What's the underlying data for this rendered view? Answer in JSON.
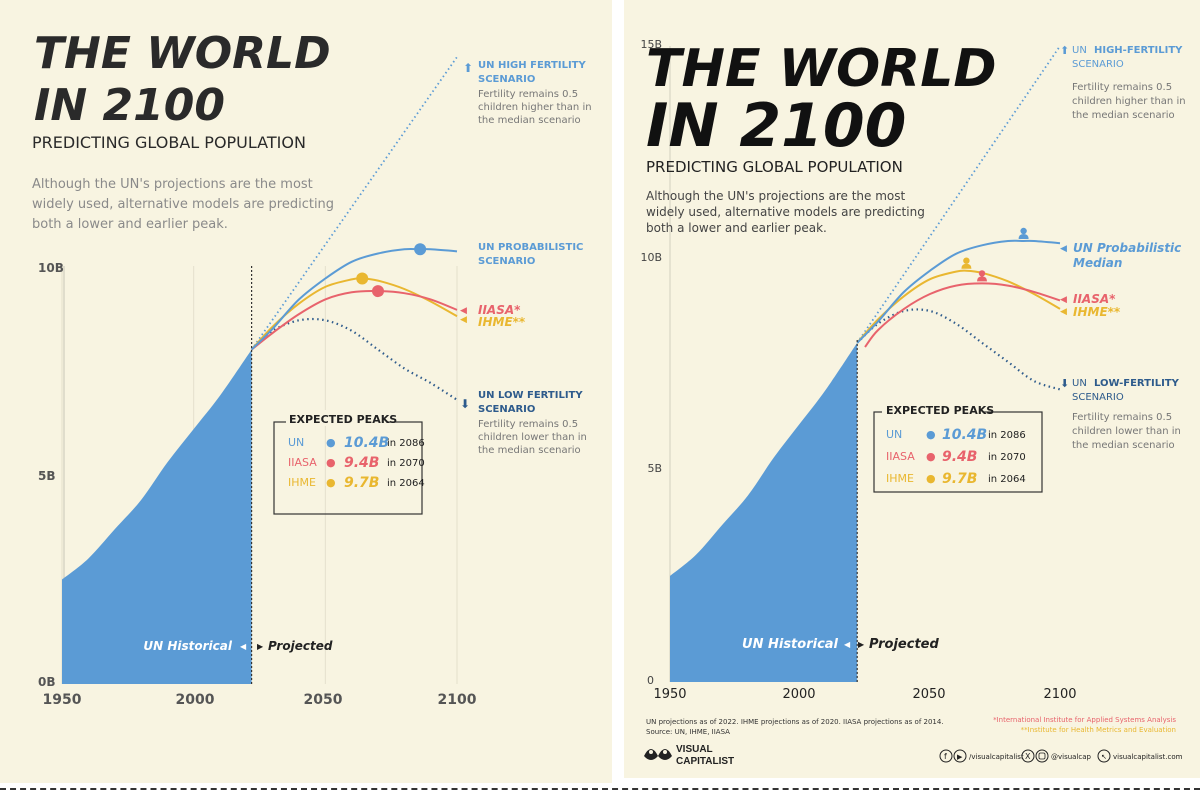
{
  "left": {
    "title_line1": "THE WORLD",
    "title_line2": "IN 2100",
    "subtitle": "PREDICTING GLOBAL POPULATION",
    "intro": [
      "Although the UN's projections are the most",
      "widely used, alternative models are predicting",
      "both a lower and earlier peak."
    ],
    "y_ticks": [
      "10B",
      "5B",
      "0B"
    ],
    "x_ticks": [
      "1950",
      "2000",
      "2050",
      "2100"
    ],
    "label_historical": "UN Historical",
    "label_projected": "Projected",
    "high_title": [
      "UN HIGH FERTILITY",
      "SCENARIO"
    ],
    "high_note": [
      "Fertility remains 0.5",
      "children higher than in",
      "the median scenario"
    ],
    "low_title": [
      "UN LOW FERTILITY",
      "SCENARIO"
    ],
    "low_note": [
      "Fertility remains 0.5",
      "children lower than in",
      "the median scenario"
    ],
    "prob_label": [
      "UN PROBABILISTIC",
      "SCENARIO"
    ],
    "iiasa_label": "IIASA*",
    "ihme_label": "IHME**"
  },
  "right": {
    "title_line1": "THE WORLD",
    "title_line2": "IN 2100",
    "subtitle": "PREDICTING GLOBAL POPULATION",
    "intro": [
      "Although the UN's projections are the most",
      "widely used, alternative models are predicting",
      "both a lower and earlier peak."
    ],
    "y_ticks": [
      "15B",
      "10B",
      "5B",
      "0"
    ],
    "x_ticks": [
      "1950",
      "2000",
      "2050",
      "2100"
    ],
    "label_historical": "UN Historical",
    "label_projected": "Projected",
    "high_title": [
      "UN ",
      "HIGH-FERTILITY",
      "SCENARIO"
    ],
    "high_note": [
      "Fertility remains 0.5",
      "children higher than in",
      "the median scenario"
    ],
    "low_title": [
      "UN ",
      "LOW-FERTILITY",
      "SCENARIO"
    ],
    "low_note": [
      "Fertility remains 0.5",
      "children lower than in",
      "the median scenario"
    ],
    "prob_label": [
      "UN Probabilistic",
      "Median"
    ],
    "iiasa_label": "IIASA*",
    "ihme_label": "IHME**",
    "source_line1": "UN projections as of 2022. IHME projections as of 2020. IIASA projections as of 2014.",
    "source_line2": "Source: UN, IHME, IIASA",
    "footnote1": "*International Institute for Applied Systems Analysis",
    "footnote2": "**Institute for Health Metrics and Evaluation",
    "brand": [
      "VISUAL",
      "CAPITALIST"
    ],
    "social_handle1": "/visualcapitalist",
    "social_handle2": "@visualcap",
    "website": "visualcapitalist.com"
  },
  "peaks_box": {
    "title": "EXPECTED PEAKS",
    "rows": [
      {
        "model": "UN",
        "value": "10.4B",
        "year_text": "in 2086",
        "color": "#5b9bd5"
      },
      {
        "model": "IIASA",
        "value": "9.4B",
        "year_text": "in 2070",
        "color": "#e8636c"
      },
      {
        "model": "IHME",
        "value": "9.7B",
        "year_text": "in 2064",
        "color": "#e9b730"
      }
    ]
  },
  "colors": {
    "background": "#f8f4e1",
    "historical": "#5b9bd5",
    "un": "#5b9bd5",
    "iiasa": "#e8636c",
    "ihme": "#e9b730",
    "low": "#2e5b8c",
    "high": "#5b9bd5",
    "text_gray": "#8a8a8a"
  },
  "chart_data": [
    {
      "type": "line",
      "title": "THE WORLD IN 2100",
      "subtitle": "PREDICTING GLOBAL POPULATION",
      "xlabel": "",
      "ylabel": "",
      "xlim": [
        1950,
        2100
      ],
      "ylim": [
        0,
        10
      ],
      "x_ticks": [
        1950,
        2000,
        2050,
        2100
      ],
      "y_ticks": [
        0,
        5,
        10
      ],
      "y_unit": "billions",
      "grid": "vertical",
      "projection_start": 2022,
      "series": [
        {
          "name": "UN Historical",
          "style": "area",
          "x": [
            1950,
            1960,
            1970,
            1980,
            1990,
            2000,
            2010,
            2022
          ],
          "y": [
            2.5,
            3.0,
            3.7,
            4.4,
            5.3,
            6.1,
            6.9,
            8.0
          ]
        },
        {
          "name": "UN Probabilistic Scenario",
          "x": [
            2022,
            2030,
            2040,
            2050,
            2060,
            2070,
            2080,
            2086,
            2090,
            2100
          ],
          "y": [
            8.0,
            8.5,
            9.2,
            9.7,
            10.1,
            10.3,
            10.4,
            10.4,
            10.4,
            10.35
          ],
          "peak": {
            "x": 2086,
            "y": 10.4
          }
        },
        {
          "name": "IIASA",
          "x": [
            2022,
            2030,
            2040,
            2050,
            2060,
            2070,
            2080,
            2090,
            2100
          ],
          "y": [
            8.0,
            8.4,
            8.85,
            9.2,
            9.37,
            9.4,
            9.35,
            9.2,
            8.95
          ],
          "peak": {
            "x": 2070,
            "y": 9.4
          }
        },
        {
          "name": "IHME",
          "x": [
            2022,
            2030,
            2040,
            2050,
            2060,
            2064,
            2070,
            2080,
            2090,
            2100
          ],
          "y": [
            8.0,
            8.55,
            9.1,
            9.5,
            9.68,
            9.7,
            9.65,
            9.45,
            9.15,
            8.8
          ],
          "peak": {
            "x": 2064,
            "y": 9.7
          }
        },
        {
          "name": "UN Low Fertility Scenario",
          "style": "dotted",
          "x": [
            2022,
            2030,
            2040,
            2050,
            2060,
            2070,
            2080,
            2090,
            2100
          ],
          "y": [
            8.0,
            8.45,
            8.7,
            8.7,
            8.45,
            8.0,
            7.55,
            7.2,
            6.8
          ]
        },
        {
          "name": "UN High Fertility Scenario",
          "style": "dotted",
          "x": [
            2022,
            2100
          ],
          "y": [
            8.0,
            15.0
          ]
        }
      ]
    },
    {
      "type": "line",
      "title": "THE WORLD IN 2100",
      "subtitle": "PREDICTING GLOBAL POPULATION",
      "xlabel": "",
      "ylabel": "",
      "xlim": [
        1950,
        2100
      ],
      "ylim": [
        0,
        15
      ],
      "x_ticks": [
        1950,
        2000,
        2050,
        2100
      ],
      "y_ticks": [
        0,
        5,
        10,
        15
      ],
      "y_unit": "billions",
      "grid": "none",
      "projection_start": 2022,
      "series": [
        {
          "name": "UN Historical",
          "style": "area",
          "x": [
            1950,
            1960,
            1970,
            1980,
            1990,
            2000,
            2010,
            2022
          ],
          "y": [
            2.5,
            3.0,
            3.7,
            4.4,
            5.3,
            6.1,
            6.9,
            8.0
          ]
        },
        {
          "name": "UN Probabilistic Median",
          "x": [
            2022,
            2030,
            2040,
            2050,
            2060,
            2070,
            2080,
            2086,
            2090,
            2100
          ],
          "y": [
            8.0,
            8.5,
            9.2,
            9.7,
            10.1,
            10.3,
            10.4,
            10.4,
            10.4,
            10.35
          ],
          "peak": {
            "x": 2086,
            "y": 10.4
          }
        },
        {
          "name": "IIASA",
          "x": [
            2025,
            2030,
            2040,
            2050,
            2060,
            2070,
            2080,
            2090,
            2100
          ],
          "y": [
            7.9,
            8.3,
            8.8,
            9.15,
            9.35,
            9.4,
            9.35,
            9.2,
            9.0
          ],
          "peak": {
            "x": 2070,
            "y": 9.4
          }
        },
        {
          "name": "IHME",
          "x": [
            2022,
            2030,
            2040,
            2050,
            2060,
            2064,
            2070,
            2080,
            2090,
            2100
          ],
          "y": [
            8.0,
            8.55,
            9.1,
            9.5,
            9.68,
            9.7,
            9.65,
            9.45,
            9.15,
            8.8
          ],
          "peak": {
            "x": 2064,
            "y": 9.7
          }
        },
        {
          "name": "UN Low-Fertility Scenario",
          "style": "dotted",
          "x": [
            2022,
            2030,
            2040,
            2050,
            2060,
            2070,
            2080,
            2090,
            2100
          ],
          "y": [
            8.0,
            8.45,
            8.75,
            8.75,
            8.45,
            8.0,
            7.55,
            7.1,
            6.9
          ]
        },
        {
          "name": "UN High-Fertility Scenario",
          "style": "dotted",
          "x": [
            2022,
            2100
          ],
          "y": [
            8.0,
            15.0
          ]
        }
      ]
    }
  ]
}
